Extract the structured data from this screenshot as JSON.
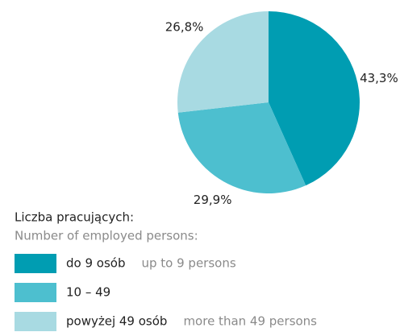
{
  "chart_data": {
    "type": "pie",
    "title": "Liczba pracujących:",
    "subtitle": "Number of employed persons:",
    "categories": [
      "do 9 osób",
      "10 – 49",
      "powyżej 49 osób"
    ],
    "categories_en": [
      "up to 9 persons",
      null,
      "more than 49 persons"
    ],
    "values": [
      43.3,
      29.9,
      26.8
    ],
    "value_labels": [
      "43,3%",
      "29,9%",
      "26,8%"
    ],
    "colors": [
      "#009db2",
      "#4dbfcf",
      "#a8dae2"
    ]
  }
}
